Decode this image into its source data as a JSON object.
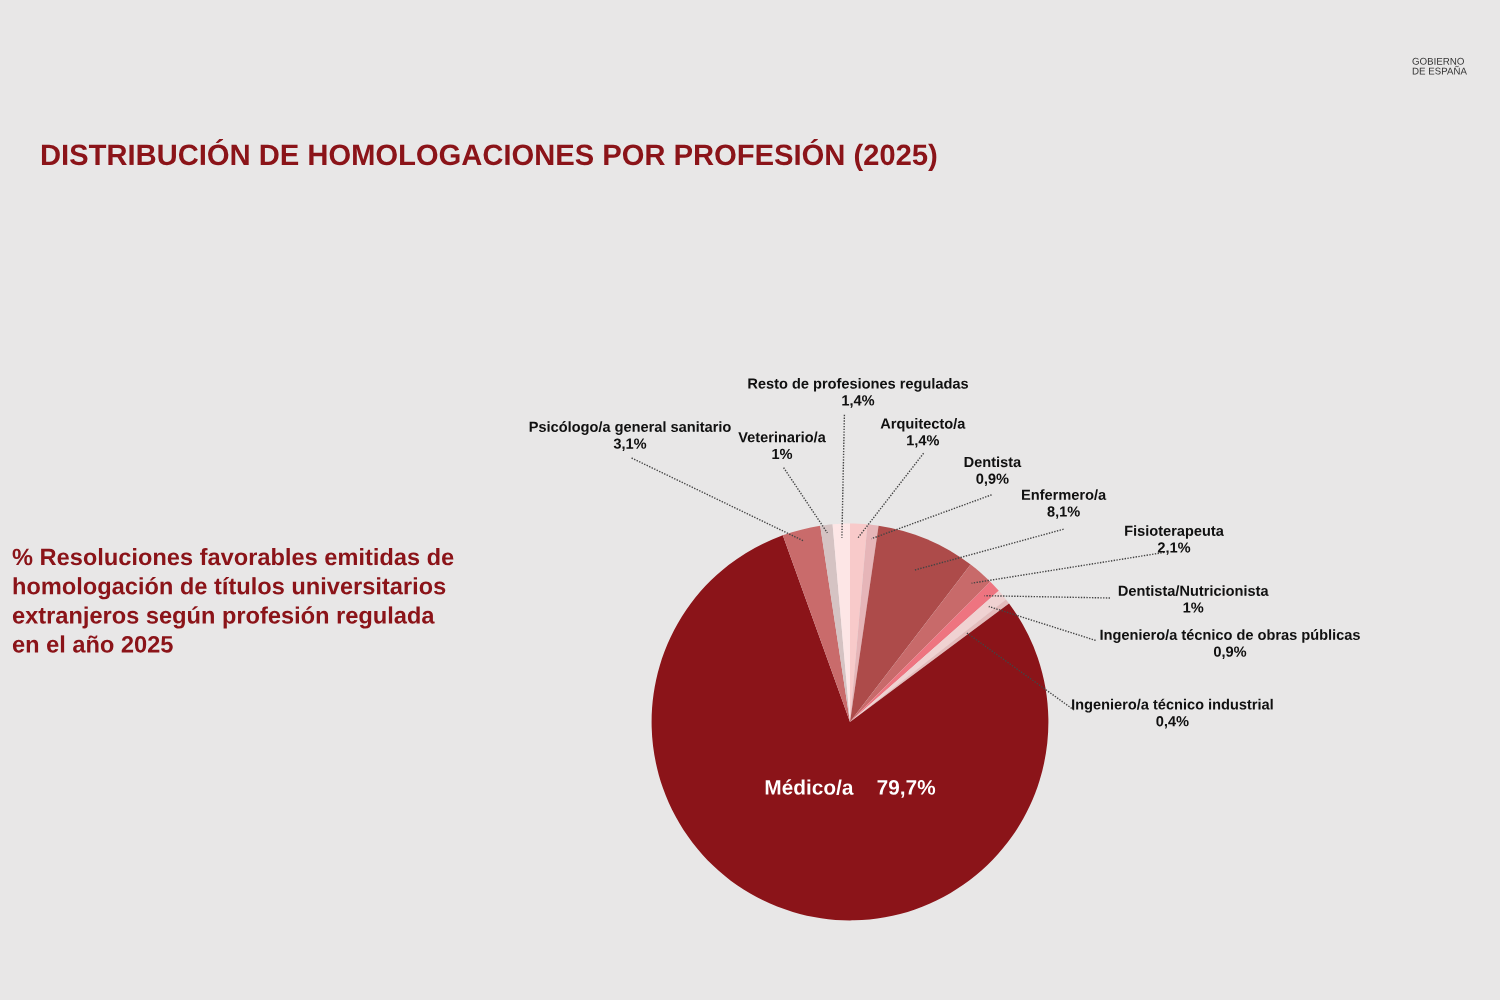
{
  "chart_data": {
    "type": "pie",
    "title": "DISTRIBUCIÓN DE HOMOLOGACIONES POR PROFESIÓN (2025)",
    "subtitle": "% Resoluciones favorables emitidas de\nhomologación de títulos universitarios\nextranjeros según profesión regulada\nen el año 2025",
    "categories": [
      "Arquitecto/a",
      "Dentista",
      "Enfermero/a",
      "Fisioterapeuta",
      "Dentista/Nutricionista",
      "Ingeniero/a técnico de obras públicas",
      "Ingeniero/a técnico industrial",
      "Médico/a",
      "Psicólogo/a general sanitario",
      "Veterinario/a",
      "Resto de profesiones reguladas"
    ],
    "values": [
      1.4,
      0.9,
      8.1,
      2.1,
      1,
      0.9,
      0.4,
      79.7,
      3.1,
      1,
      1.4
    ],
    "colors": [
      "#f8caca",
      "#e6b5b8",
      "#ad4b4a",
      "#c86a6a",
      "#ee7480",
      "#f0d2d2",
      "#e4bcbc",
      "#8b1419",
      "#c96b6b",
      "#d5c3c3",
      "#fde6e6"
    ],
    "value_labels": [
      "1,4%",
      "0,9%",
      "8,1%",
      "2,1%",
      "1%",
      "0,9%",
      "0,4%",
      "79,7%",
      "3,1%",
      "1%",
      "1,4%"
    ],
    "annotations": [
      "GOBIERNO\nDE ESPAÑA"
    ]
  }
}
